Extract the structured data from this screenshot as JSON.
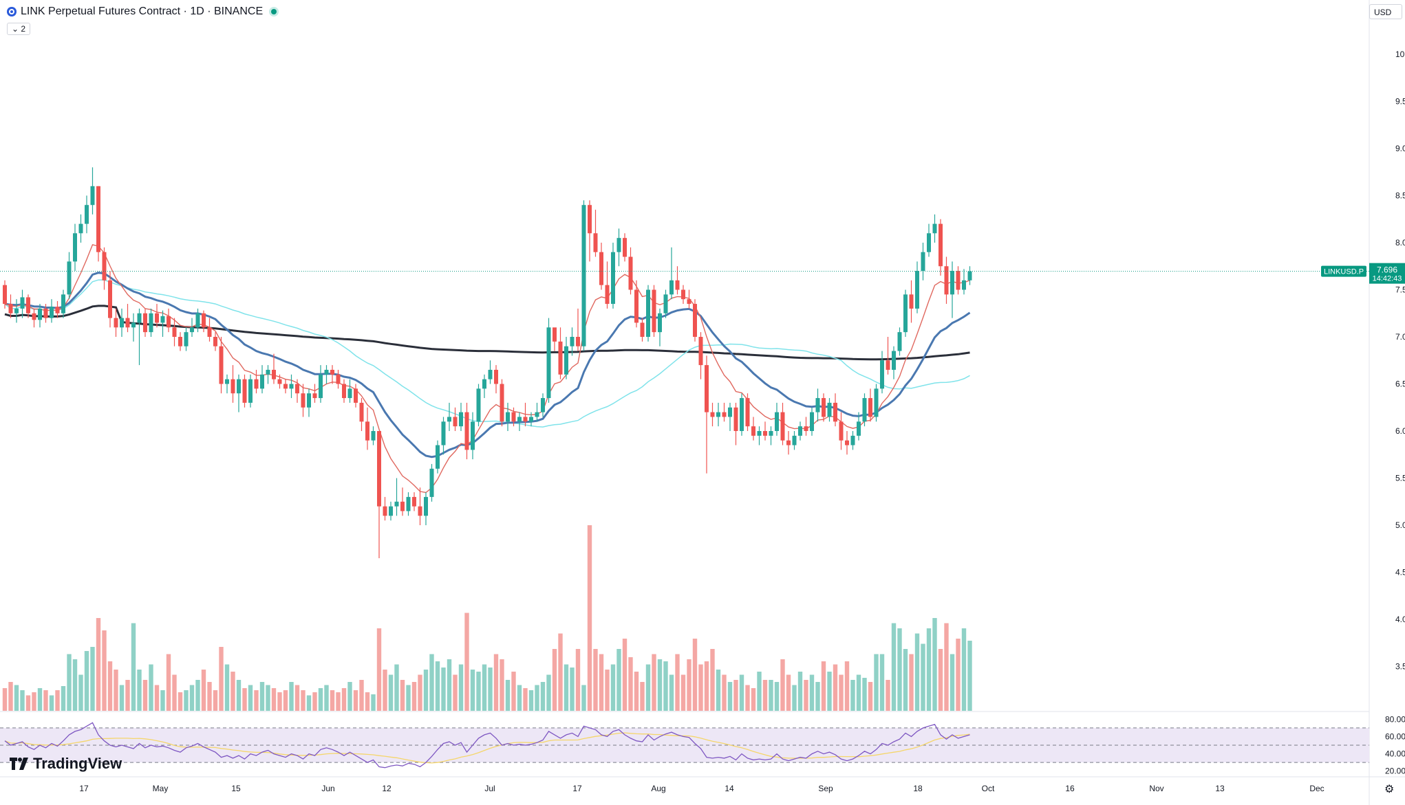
{
  "header": {
    "symbol_title": "LINK Perpetual Futures Contract · 1D · BINANCE",
    "collapse_label": "⌄ 2",
    "currency": "USD"
  },
  "branding": {
    "logo_text": "TradingView"
  },
  "colors": {
    "up": "#26a69a",
    "down": "#ef5350",
    "up_vol": "#8fd1c6",
    "down_vol": "#f4a7a4",
    "ma_fast": "#e0685f",
    "ma_mid": "#4a78b0",
    "ma_light": "#7fe3ea",
    "ma_slow": "#2a2e39",
    "rsi_line": "#7e57c2",
    "rsi_ma": "#f5d66a",
    "rsi_band": "#ede7f6",
    "price_tag": "#089981"
  },
  "chart_data": {
    "type": "candlestick",
    "price_axis": {
      "ticks": [
        "10.000",
        "9.500",
        "9.000",
        "8.500",
        "8.000",
        "7.500",
        "7.000",
        "6.500",
        "6.000",
        "5.500",
        "5.000",
        "4.500",
        "4.000",
        "3.500"
      ],
      "range": [
        3.0,
        10.4
      ]
    },
    "time_axis": {
      "ticks": [
        "17",
        "May",
        "15",
        "Jun",
        "12",
        "Jul",
        "17",
        "Aug",
        "14",
        "Sep",
        "18",
        "Oct",
        "16",
        "Nov",
        "13",
        "Dec"
      ]
    },
    "last_price": {
      "label": "LINKUSD.P",
      "value": "7.696",
      "countdown": "14:42:43",
      "numeric": 7.696
    },
    "candles_ohlc": [
      [
        7.55,
        7.6,
        7.3,
        7.35
      ],
      [
        7.35,
        7.45,
        7.2,
        7.25
      ],
      [
        7.25,
        7.4,
        7.15,
        7.3
      ],
      [
        7.3,
        7.5,
        7.2,
        7.42
      ],
      [
        7.42,
        7.45,
        7.2,
        7.25
      ],
      [
        7.25,
        7.3,
        7.1,
        7.18
      ],
      [
        7.18,
        7.35,
        7.1,
        7.3
      ],
      [
        7.3,
        7.35,
        7.15,
        7.2
      ],
      [
        7.2,
        7.4,
        7.15,
        7.32
      ],
      [
        7.32,
        7.38,
        7.2,
        7.25
      ],
      [
        7.25,
        7.5,
        7.2,
        7.45
      ],
      [
        7.45,
        7.9,
        7.4,
        7.8
      ],
      [
        7.8,
        8.2,
        7.7,
        8.1
      ],
      [
        8.1,
        8.3,
        8.0,
        8.2
      ],
      [
        8.2,
        8.5,
        8.1,
        8.4
      ],
      [
        8.4,
        8.8,
        8.3,
        8.6
      ],
      [
        8.6,
        8.6,
        7.8,
        7.9
      ],
      [
        7.9,
        7.95,
        7.5,
        7.6
      ],
      [
        7.6,
        7.7,
        7.1,
        7.2
      ],
      [
        7.2,
        7.3,
        7.0,
        7.1
      ],
      [
        7.1,
        7.3,
        7.0,
        7.2
      ],
      [
        7.2,
        7.35,
        7.05,
        7.1
      ],
      [
        7.1,
        7.25,
        6.95,
        7.15
      ],
      [
        7.15,
        7.3,
        6.7,
        7.25
      ],
      [
        7.25,
        7.3,
        7.0,
        7.05
      ],
      [
        7.05,
        7.3,
        7.0,
        7.25
      ],
      [
        7.25,
        7.35,
        7.1,
        7.15
      ],
      [
        7.15,
        7.28,
        7.0,
        7.22
      ],
      [
        7.22,
        7.3,
        7.05,
        7.1
      ],
      [
        7.1,
        7.2,
        6.9,
        7.0
      ],
      [
        7.0,
        7.05,
        6.85,
        6.9
      ],
      [
        6.9,
        7.1,
        6.85,
        7.05
      ],
      [
        7.05,
        7.2,
        7.0,
        7.1
      ],
      [
        7.1,
        7.3,
        7.05,
        7.25
      ],
      [
        7.25,
        7.28,
        7.05,
        7.1
      ],
      [
        7.1,
        7.2,
        6.95,
        7.0
      ],
      [
        7.0,
        7.05,
        6.85,
        6.9
      ],
      [
        6.9,
        7.0,
        6.4,
        6.5
      ],
      [
        6.5,
        6.6,
        6.4,
        6.55
      ],
      [
        6.55,
        6.7,
        6.3,
        6.4
      ],
      [
        6.4,
        6.6,
        6.2,
        6.55
      ],
      [
        6.55,
        6.6,
        6.25,
        6.3
      ],
      [
        6.3,
        6.6,
        6.25,
        6.55
      ],
      [
        6.55,
        6.65,
        6.4,
        6.45
      ],
      [
        6.45,
        6.7,
        6.4,
        6.6
      ],
      [
        6.6,
        6.7,
        6.5,
        6.65
      ],
      [
        6.65,
        6.82,
        6.5,
        6.55
      ],
      [
        6.55,
        6.6,
        6.45,
        6.5
      ],
      [
        6.5,
        6.55,
        6.4,
        6.45
      ],
      [
        6.45,
        6.6,
        6.35,
        6.5
      ],
      [
        6.5,
        6.55,
        6.3,
        6.4
      ],
      [
        6.4,
        6.5,
        6.15,
        6.25
      ],
      [
        6.25,
        6.45,
        6.15,
        6.4
      ],
      [
        6.4,
        6.5,
        6.3,
        6.35
      ],
      [
        6.35,
        6.7,
        6.3,
        6.6
      ],
      [
        6.6,
        6.7,
        6.5,
        6.65
      ],
      [
        6.65,
        6.7,
        6.5,
        6.6
      ],
      [
        6.6,
        6.65,
        6.45,
        6.5
      ],
      [
        6.5,
        6.55,
        6.3,
        6.35
      ],
      [
        6.35,
        6.55,
        6.3,
        6.45
      ],
      [
        6.45,
        6.5,
        6.25,
        6.3
      ],
      [
        6.3,
        6.35,
        6.0,
        6.1
      ],
      [
        6.1,
        6.25,
        5.8,
        5.9
      ],
      [
        5.9,
        6.05,
        5.85,
        6.0
      ],
      [
        6.0,
        6.0,
        4.65,
        5.2
      ],
      [
        5.2,
        5.3,
        5.05,
        5.1
      ],
      [
        5.1,
        5.25,
        5.05,
        5.2
      ],
      [
        5.2,
        5.5,
        5.1,
        5.25
      ],
      [
        5.25,
        5.4,
        5.1,
        5.15
      ],
      [
        5.15,
        5.35,
        5.1,
        5.3
      ],
      [
        5.3,
        5.35,
        5.15,
        5.2
      ],
      [
        5.2,
        5.4,
        5.0,
        5.1
      ],
      [
        5.1,
        5.35,
        5.0,
        5.3
      ],
      [
        5.3,
        5.65,
        5.25,
        5.6
      ],
      [
        5.6,
        5.9,
        5.55,
        5.85
      ],
      [
        5.85,
        6.15,
        5.75,
        6.1
      ],
      [
        6.1,
        6.3,
        6.0,
        6.15
      ],
      [
        6.15,
        6.25,
        6.0,
        6.05
      ],
      [
        6.05,
        6.3,
        6.0,
        6.2
      ],
      [
        6.2,
        6.3,
        5.7,
        5.8
      ],
      [
        5.8,
        6.2,
        5.7,
        6.1
      ],
      [
        6.1,
        6.5,
        6.05,
        6.45
      ],
      [
        6.45,
        6.6,
        6.35,
        6.55
      ],
      [
        6.55,
        6.75,
        6.5,
        6.65
      ],
      [
        6.65,
        6.7,
        6.4,
        6.5
      ],
      [
        6.5,
        6.55,
        6.05,
        6.1
      ],
      [
        6.1,
        6.3,
        6.0,
        6.2
      ],
      [
        6.2,
        6.25,
        6.05,
        6.1
      ],
      [
        6.1,
        6.2,
        6.0,
        6.15
      ],
      [
        6.15,
        6.3,
        6.05,
        6.1
      ],
      [
        6.1,
        6.2,
        6.05,
        6.15
      ],
      [
        6.15,
        6.3,
        6.1,
        6.2
      ],
      [
        6.2,
        6.4,
        6.15,
        6.35
      ],
      [
        6.35,
        7.2,
        6.3,
        7.1
      ],
      [
        7.1,
        7.05,
        6.85,
        6.95
      ],
      [
        6.95,
        7.1,
        6.55,
        6.6
      ],
      [
        6.6,
        7.0,
        6.55,
        6.9
      ],
      [
        6.9,
        7.1,
        6.8,
        7.0
      ],
      [
        7.0,
        7.3,
        6.85,
        6.9
      ],
      [
        6.9,
        8.45,
        6.85,
        8.4
      ],
      [
        8.4,
        8.45,
        7.8,
        8.1
      ],
      [
        8.1,
        8.35,
        7.85,
        7.9
      ],
      [
        7.9,
        8.0,
        7.5,
        7.55
      ],
      [
        7.55,
        7.8,
        7.3,
        7.35
      ],
      [
        7.35,
        8.0,
        7.3,
        7.9
      ],
      [
        7.9,
        8.15,
        7.75,
        8.05
      ],
      [
        8.05,
        8.1,
        7.8,
        7.85
      ],
      [
        7.85,
        7.95,
        7.45,
        7.5
      ],
      [
        7.5,
        7.6,
        7.1,
        7.15
      ],
      [
        7.15,
        7.2,
        6.95,
        7.0
      ],
      [
        7.0,
        7.55,
        6.95,
        7.5
      ],
      [
        7.5,
        7.55,
        7.0,
        7.05
      ],
      [
        7.05,
        7.3,
        6.9,
        7.25
      ],
      [
        7.25,
        7.5,
        7.2,
        7.45
      ],
      [
        7.45,
        7.95,
        7.4,
        7.6
      ],
      [
        7.6,
        7.75,
        7.45,
        7.5
      ],
      [
        7.5,
        7.55,
        7.35,
        7.4
      ],
      [
        7.4,
        7.5,
        7.3,
        7.35
      ],
      [
        7.35,
        7.4,
        6.95,
        7.0
      ],
      [
        7.0,
        7.05,
        6.55,
        6.7
      ],
      [
        6.7,
        6.8,
        5.55,
        6.2
      ],
      [
        6.2,
        6.3,
        6.05,
        6.15
      ],
      [
        6.15,
        6.3,
        6.05,
        6.2
      ],
      [
        6.2,
        6.3,
        6.1,
        6.15
      ],
      [
        6.15,
        6.3,
        6.0,
        6.25
      ],
      [
        6.25,
        6.3,
        5.85,
        6.0
      ],
      [
        6.0,
        6.4,
        5.95,
        6.35
      ],
      [
        6.35,
        6.4,
        6.0,
        6.05
      ],
      [
        6.05,
        6.15,
        5.9,
        5.95
      ],
      [
        5.95,
        6.05,
        5.85,
        6.0
      ],
      [
        6.0,
        6.1,
        5.9,
        5.95
      ],
      [
        5.95,
        6.05,
        5.85,
        6.0
      ],
      [
        6.0,
        6.3,
        5.95,
        6.2
      ],
      [
        6.2,
        6.3,
        5.85,
        5.9
      ],
      [
        5.9,
        6.0,
        5.75,
        5.85
      ],
      [
        5.85,
        6.0,
        5.8,
        5.95
      ],
      [
        5.95,
        6.1,
        5.9,
        6.05
      ],
      [
        6.05,
        6.15,
        5.95,
        6.0
      ],
      [
        6.0,
        6.25,
        5.95,
        6.2
      ],
      [
        6.2,
        6.45,
        6.1,
        6.35
      ],
      [
        6.35,
        6.4,
        6.1,
        6.15
      ],
      [
        6.15,
        6.35,
        6.1,
        6.3
      ],
      [
        6.3,
        6.4,
        6.05,
        6.1
      ],
      [
        6.1,
        6.2,
        5.8,
        5.9
      ],
      [
        5.9,
        6.0,
        5.75,
        5.85
      ],
      [
        5.85,
        6.0,
        5.8,
        5.95
      ],
      [
        5.95,
        6.2,
        5.9,
        6.1
      ],
      [
        6.1,
        6.4,
        6.05,
        6.35
      ],
      [
        6.35,
        6.45,
        6.1,
        6.15
      ],
      [
        6.15,
        6.5,
        6.1,
        6.45
      ],
      [
        6.45,
        6.85,
        6.4,
        6.75
      ],
      [
        6.75,
        7.0,
        6.6,
        6.65
      ],
      [
        6.65,
        6.9,
        6.55,
        6.85
      ],
      [
        6.85,
        7.1,
        6.8,
        7.05
      ],
      [
        7.05,
        7.5,
        7.0,
        7.45
      ],
      [
        7.45,
        7.6,
        7.15,
        7.3
      ],
      [
        7.3,
        7.8,
        7.25,
        7.7
      ],
      [
        7.7,
        8.0,
        7.6,
        7.9
      ],
      [
        7.9,
        8.2,
        7.85,
        8.1
      ],
      [
        8.1,
        8.3,
        8.0,
        8.2
      ],
      [
        8.2,
        8.25,
        7.65,
        7.75
      ],
      [
        7.75,
        7.85,
        7.35,
        7.45
      ],
      [
        7.45,
        7.8,
        7.2,
        7.7
      ],
      [
        7.7,
        7.75,
        7.45,
        7.5
      ],
      [
        7.5,
        7.72,
        7.45,
        7.6
      ],
      [
        7.6,
        7.75,
        7.55,
        7.696
      ]
    ],
    "volume": [
      22,
      28,
      25,
      20,
      15,
      18,
      22,
      20,
      15,
      20,
      24,
      55,
      50,
      35,
      58,
      62,
      90,
      78,
      48,
      40,
      25,
      30,
      85,
      40,
      30,
      45,
      25,
      20,
      55,
      35,
      18,
      20,
      25,
      30,
      40,
      28,
      20,
      62,
      45,
      38,
      30,
      22,
      25,
      20,
      28,
      25,
      22,
      18,
      20,
      28,
      25,
      20,
      15,
      18,
      22,
      25,
      20,
      18,
      22,
      28,
      20,
      30,
      18,
      16,
      80,
      40,
      35,
      45,
      30,
      25,
      28,
      35,
      40,
      55,
      48,
      42,
      50,
      35,
      45,
      95,
      40,
      38,
      45,
      42,
      55,
      50,
      30,
      38,
      25,
      22,
      20,
      25,
      28,
      35,
      60,
      75,
      45,
      42,
      60,
      25,
      180,
      60,
      55,
      40,
      45,
      60,
      70,
      52,
      38,
      28,
      45,
      55,
      50,
      48,
      35,
      55,
      35,
      50,
      70,
      45,
      48,
      60,
      40,
      35,
      28,
      30,
      35,
      25,
      22,
      38,
      30,
      30,
      28,
      50,
      35,
      25,
      38,
      30,
      35,
      28,
      48,
      38,
      45,
      35,
      48,
      30,
      35,
      32,
      28,
      55,
      55,
      30,
      85,
      80,
      60,
      55,
      75,
      65,
      80,
      90,
      60,
      85,
      55,
      70,
      80,
      68,
      55,
      25,
      22,
      12
    ],
    "rsi": {
      "axis_ticks": [
        "80.00",
        "60.00",
        "40.00",
        "20.00"
      ],
      "upper_band": 70,
      "lower_band": 30,
      "values": [
        55,
        50,
        52,
        54,
        48,
        45,
        50,
        47,
        52,
        49,
        55,
        62,
        66,
        68,
        72,
        76,
        62,
        55,
        50,
        48,
        50,
        48,
        46,
        52,
        47,
        50,
        48,
        49,
        47,
        44,
        42,
        47,
        49,
        52,
        48,
        45,
        42,
        36,
        38,
        35,
        38,
        34,
        40,
        38,
        42,
        44,
        40,
        38,
        36,
        40,
        38,
        34,
        40,
        38,
        45,
        47,
        45,
        42,
        38,
        42,
        38,
        34,
        30,
        33,
        25,
        24,
        26,
        27,
        26,
        29,
        28,
        25,
        30,
        37,
        45,
        52,
        54,
        50,
        53,
        42,
        50,
        58,
        62,
        64,
        58,
        50,
        52,
        50,
        51,
        50,
        51,
        53,
        56,
        66,
        62,
        58,
        62,
        64,
        60,
        72,
        70,
        68,
        62,
        60,
        66,
        68,
        62,
        58,
        55,
        54,
        62,
        56,
        60,
        63,
        65,
        62,
        60,
        59,
        52,
        46,
        36,
        35,
        36,
        35,
        37,
        33,
        40,
        35,
        33,
        34,
        33,
        34,
        40,
        34,
        32,
        34,
        36,
        35,
        40,
        43,
        40,
        42,
        39,
        34,
        32,
        34,
        38,
        43,
        40,
        45,
        52,
        50,
        54,
        57,
        64,
        60,
        66,
        70,
        72,
        74,
        62,
        57,
        62,
        58,
        60,
        62
      ]
    }
  }
}
